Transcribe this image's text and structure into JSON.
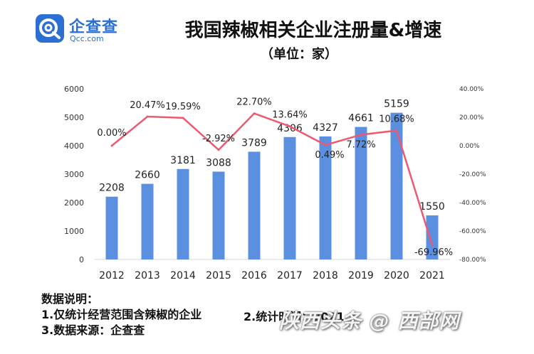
{
  "logo": {
    "brand_cn": "企查查",
    "brand_en": "Qcc.com"
  },
  "header": {
    "title": "我国辣椒相关企业注册量&增速",
    "subtitle": "（单位：家）"
  },
  "chart_data": {
    "type": "bar",
    "title": "我国辣椒相关企业注册量&增速",
    "subtitle": "（单位：家）",
    "categories": [
      "2012",
      "2013",
      "2014",
      "2015",
      "2016",
      "2017",
      "2018",
      "2019",
      "2020",
      "2021"
    ],
    "series": [
      {
        "type": "bar",
        "axis": "left",
        "values": [
          2208,
          2660,
          3181,
          3088,
          3789,
          4306,
          4327,
          4661,
          5159,
          1550
        ],
        "color": "#5b8fe0"
      },
      {
        "type": "line",
        "axis": "right",
        "values": [
          0.0,
          20.47,
          19.59,
          -2.92,
          22.7,
          13.64,
          0.49,
          7.72,
          10.68,
          -69.96
        ],
        "labels": [
          "0.00%",
          "20.47%",
          "19.59%",
          "-2.92%",
          "22.70%",
          "13.64%",
          "0.49%",
          "7.72%",
          "10.68%",
          "-69.96%"
        ],
        "color": "#ec5a72"
      }
    ],
    "y_left": {
      "min": 0,
      "max": 6000,
      "ticks": [
        "0",
        "1000",
        "2000",
        "3000",
        "4000",
        "5000",
        "6000"
      ]
    },
    "y_right": {
      "min": -80,
      "max": 40,
      "ticks": [
        "-80.00%",
        "-60.00%",
        "-40.00%",
        "-20.00%",
        "0.00%",
        "20.00%",
        "40.00%"
      ]
    },
    "grid": false,
    "legend": "none"
  },
  "notes": {
    "heading": "数据说明：",
    "item1": "1.仅统计经营范围含辣椒的企业",
    "item2": "2.统计时间：2021.5",
    "item3": "3.数据来源：企查查"
  },
  "watermark": "陕西头条 @ 西部网"
}
